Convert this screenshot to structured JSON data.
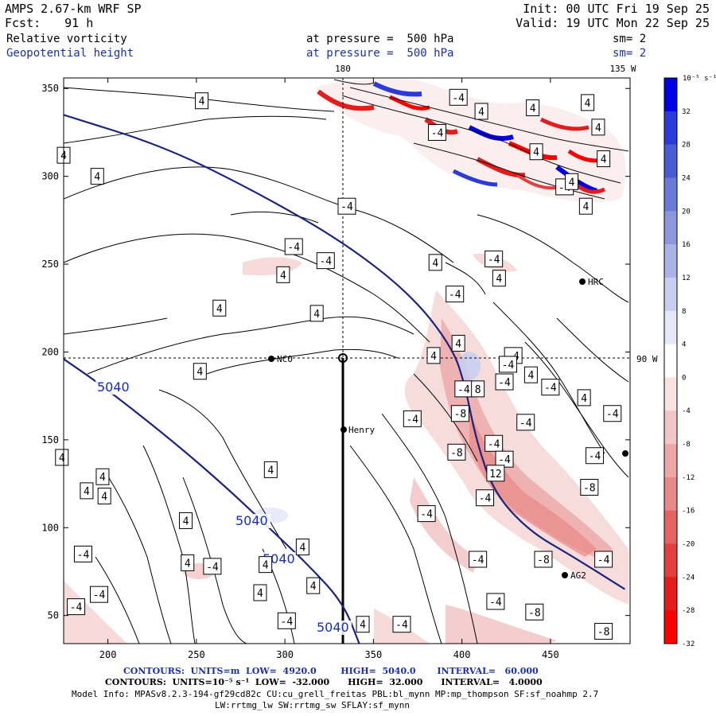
{
  "header": {
    "model": "AMPS 2.67-km WRF SP",
    "fcst_label": "Fcst:",
    "fcst_value": "91 h",
    "init": "Init: 00 UTC Fri 19 Sep 25",
    "valid": "Valid: 19 UTC Mon 22 Sep 25",
    "field1": "Relative vorticity",
    "field2": "Geopotential height",
    "level1": "at pressure =  500 hPa",
    "level2": "at pressure =  500 hPa",
    "sm1": "sm= 2",
    "sm2": "sm= 2"
  },
  "colorbar": {
    "unit": "10⁻⁵ s⁻¹",
    "levels": [
      "32",
      "28",
      "24",
      "20",
      "16",
      "12",
      "8",
      "4",
      "0",
      "-4",
      "-8",
      "-12",
      "-16",
      "-20",
      "-24",
      "-28",
      "-32"
    ],
    "colors": [
      "#0000e6",
      "#2b3bd9",
      "#4a5cd4",
      "#6a7ad6",
      "#8c98dc",
      "#aab3e6",
      "#c8cef0",
      "#e6e8f8",
      "#ffffff",
      "#f8e2e2",
      "#f2c6c6",
      "#eca8a8",
      "#e88888",
      "#e46464",
      "#e43e3e",
      "#e41c1c",
      "#ff0000"
    ]
  },
  "map_labels": {
    "lon_180": "180",
    "lon_135w": "135 W",
    "lon_90w": "90 W",
    "station_nco": "NCO",
    "station_henry": "Henry",
    "station_hrc": "HRC",
    "station_ag2": "AG2"
  },
  "chart_data": {
    "type": "contour",
    "title": "Relative vorticity / Geopotential height at 500 hPa",
    "x_ticks": [
      200,
      250,
      300,
      350,
      400,
      450
    ],
    "y_ticks": [
      50,
      100,
      150,
      200,
      250,
      300,
      350
    ],
    "xlim": [
      175,
      495
    ],
    "ylim": [
      34,
      356
    ],
    "height_contours": [
      {
        "level": 5040,
        "label": "5040",
        "points": [
          [
            175,
            335
          ],
          [
            232,
            317
          ],
          [
            286,
            290
          ],
          [
            334,
            262
          ],
          [
            372,
            232
          ],
          [
            395,
            202
          ],
          [
            402,
            180
          ],
          [
            408,
            150
          ],
          [
            418,
            120
          ],
          [
            438,
            98
          ],
          [
            462,
            84
          ],
          [
            492,
            65
          ]
        ]
      },
      {
        "level": 5040,
        "label": "5040",
        "points": [
          [
            175,
            196
          ],
          [
            198,
            180
          ],
          [
            237,
            149
          ],
          [
            268,
            122
          ],
          [
            293,
            98
          ],
          [
            314,
            78
          ],
          [
            333,
            57
          ],
          [
            342,
            34
          ]
        ]
      }
    ],
    "vorticity_labels": [
      {
        "x": 253,
        "y": 343,
        "v": "4"
      },
      {
        "x": 398,
        "y": 345,
        "v": "-4"
      },
      {
        "x": 411,
        "y": 337,
        "v": "4"
      },
      {
        "x": 440,
        "y": 339,
        "v": "4"
      },
      {
        "x": 471,
        "y": 342,
        "v": "4"
      },
      {
        "x": 386,
        "y": 325,
        "v": "-4"
      },
      {
        "x": 442,
        "y": 314,
        "v": "4"
      },
      {
        "x": 477,
        "y": 328,
        "v": "4"
      },
      {
        "x": 175,
        "y": 312,
        "v": "4"
      },
      {
        "x": 194,
        "y": 300,
        "v": "4"
      },
      {
        "x": 480,
        "y": 310,
        "v": "4"
      },
      {
        "x": 458,
        "y": 294,
        "v": "-4"
      },
      {
        "x": 470,
        "y": 283,
        "v": "4"
      },
      {
        "x": 335,
        "y": 283,
        "v": "-4"
      },
      {
        "x": 462,
        "y": 297,
        "v": "4"
      },
      {
        "x": 305,
        "y": 260,
        "v": "-4"
      },
      {
        "x": 323,
        "y": 252,
        "v": "-4"
      },
      {
        "x": 385,
        "y": 251,
        "v": "4"
      },
      {
        "x": 418,
        "y": 253,
        "v": "-4"
      },
      {
        "x": 299,
        "y": 244,
        "v": "4"
      },
      {
        "x": 421,
        "y": 242,
        "v": "4"
      },
      {
        "x": 396,
        "y": 233,
        "v": "-4"
      },
      {
        "x": 263,
        "y": 225,
        "v": "4"
      },
      {
        "x": 318,
        "y": 222,
        "v": "4"
      },
      {
        "x": 398,
        "y": 205,
        "v": "4"
      },
      {
        "x": 384,
        "y": 198,
        "v": "4"
      },
      {
        "x": 429,
        "y": 198,
        "v": "-4"
      },
      {
        "x": 252,
        "y": 189,
        "v": "4"
      },
      {
        "x": 424,
        "y": 183,
        "v": "-4"
      },
      {
        "x": 426,
        "y": 193,
        "v": "-4"
      },
      {
        "x": 450,
        "y": 180,
        "v": "-4"
      },
      {
        "x": 439,
        "y": 187,
        "v": "4"
      },
      {
        "x": 401,
        "y": 179,
        "v": "-4"
      },
      {
        "x": 409,
        "y": 179,
        "v": "8"
      },
      {
        "x": 469,
        "y": 174,
        "v": "4"
      },
      {
        "x": 372,
        "y": 162,
        "v": "-4"
      },
      {
        "x": 399,
        "y": 165,
        "v": "-8"
      },
      {
        "x": 436,
        "y": 160,
        "v": "-4"
      },
      {
        "x": 485,
        "y": 165,
        "v": "-4"
      },
      {
        "x": 397,
        "y": 143,
        "v": "-8"
      },
      {
        "x": 418,
        "y": 148,
        "v": "-4"
      },
      {
        "x": 424,
        "y": 139,
        "v": "-4"
      },
      {
        "x": 475,
        "y": 141,
        "v": "-4"
      },
      {
        "x": 174,
        "y": 140,
        "v": "4"
      },
      {
        "x": 197,
        "y": 129,
        "v": "4"
      },
      {
        "x": 292,
        "y": 133,
        "v": "4"
      },
      {
        "x": 419,
        "y": 131,
        "v": "12"
      },
      {
        "x": 188,
        "y": 121,
        "v": "4"
      },
      {
        "x": 198,
        "y": 118,
        "v": "4"
      },
      {
        "x": 413,
        "y": 117,
        "v": "-4"
      },
      {
        "x": 472,
        "y": 123,
        "v": "-8"
      },
      {
        "x": 244,
        "y": 104,
        "v": "4"
      },
      {
        "x": 380,
        "y": 108,
        "v": "-4"
      },
      {
        "x": 186,
        "y": 85,
        "v": "-4"
      },
      {
        "x": 245,
        "y": 80,
        "v": "4"
      },
      {
        "x": 259,
        "y": 78,
        "v": "-4"
      },
      {
        "x": 289,
        "y": 79,
        "v": "4"
      },
      {
        "x": 310,
        "y": 89,
        "v": "4"
      },
      {
        "x": 446,
        "y": 82,
        "v": "-8"
      },
      {
        "x": 480,
        "y": 82,
        "v": "-4"
      },
      {
        "x": 195,
        "y": 62,
        "v": "-4"
      },
      {
        "x": 286,
        "y": 63,
        "v": "4"
      },
      {
        "x": 316,
        "y": 67,
        "v": "4"
      },
      {
        "x": 419,
        "y": 58,
        "v": "-4"
      },
      {
        "x": 409,
        "y": 82,
        "v": "-4"
      },
      {
        "x": 182,
        "y": 55,
        "v": "-4"
      },
      {
        "x": 301,
        "y": 47,
        "v": "-4"
      },
      {
        "x": 344,
        "y": 45,
        "v": "4"
      },
      {
        "x": 366,
        "y": 45,
        "v": "-4"
      },
      {
        "x": 441,
        "y": 52,
        "v": "-8"
      },
      {
        "x": 480,
        "y": 41,
        "v": "-8"
      }
    ]
  },
  "footer": {
    "line1": "CONTOURS:  UNITS=m  LOW=  4920.0        HIGH=  5040.0       INTERVAL=   60.000",
    "line2": "CONTOURS:  UNITS=10⁻⁵ s⁻¹  LOW=  -32.000      HIGH=  32.000      INTERVAL=   4.0000",
    "line3": "Model Info: MPASv8.2.3-194-gf29cd82c CU:cu_grell_freitas PBL:bl_mynn MP:mp_thompson SF:sf_noahmp 2.7",
    "line4": "LW:rrtmg_lw SW:rrtmg_sw SFLAY:sf_mynn"
  }
}
